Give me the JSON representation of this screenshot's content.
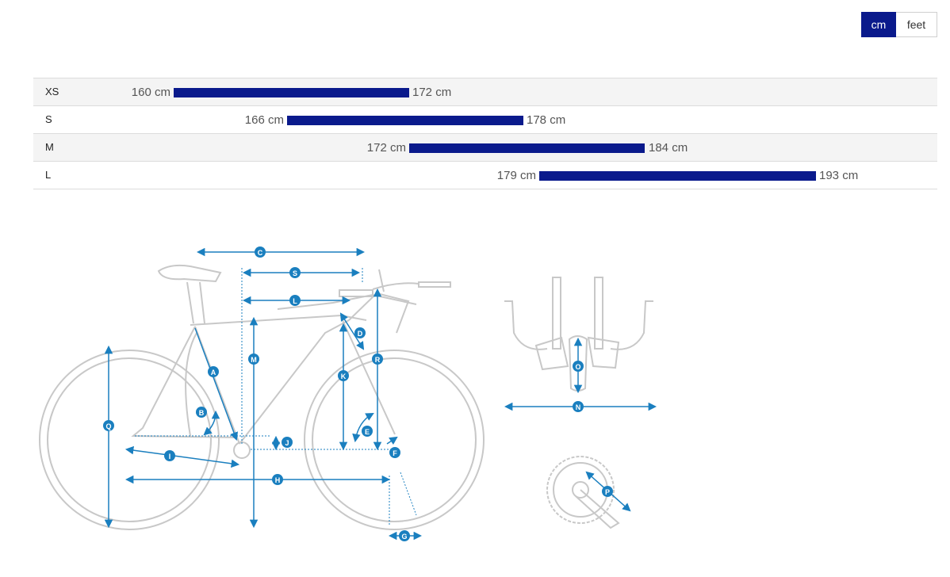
{
  "units": {
    "active": "cm",
    "inactive": "feet"
  },
  "sizes": [
    {
      "label": "XS",
      "min": "160 cm",
      "max": "172 cm",
      "min_cm": 160,
      "max_cm": 172
    },
    {
      "label": "S",
      "min": "166 cm",
      "max": "178 cm",
      "min_cm": 166,
      "max_cm": 178
    },
    {
      "label": "M",
      "min": "172 cm",
      "max": "184 cm",
      "min_cm": 172,
      "max_cm": 184
    },
    {
      "label": "L",
      "min": "179 cm",
      "max": "193 cm",
      "min_cm": 179,
      "max_cm": 193
    }
  ],
  "geometry_markers": [
    "A",
    "B",
    "C",
    "D",
    "E",
    "F",
    "G",
    "H",
    "I",
    "J",
    "K",
    "L",
    "M",
    "N",
    "O",
    "P",
    "Q",
    "R",
    "S"
  ],
  "colors": {
    "accent": "#0a1a8c",
    "marker": "#1a7fbf",
    "frame_line": "#c8c8c8"
  }
}
